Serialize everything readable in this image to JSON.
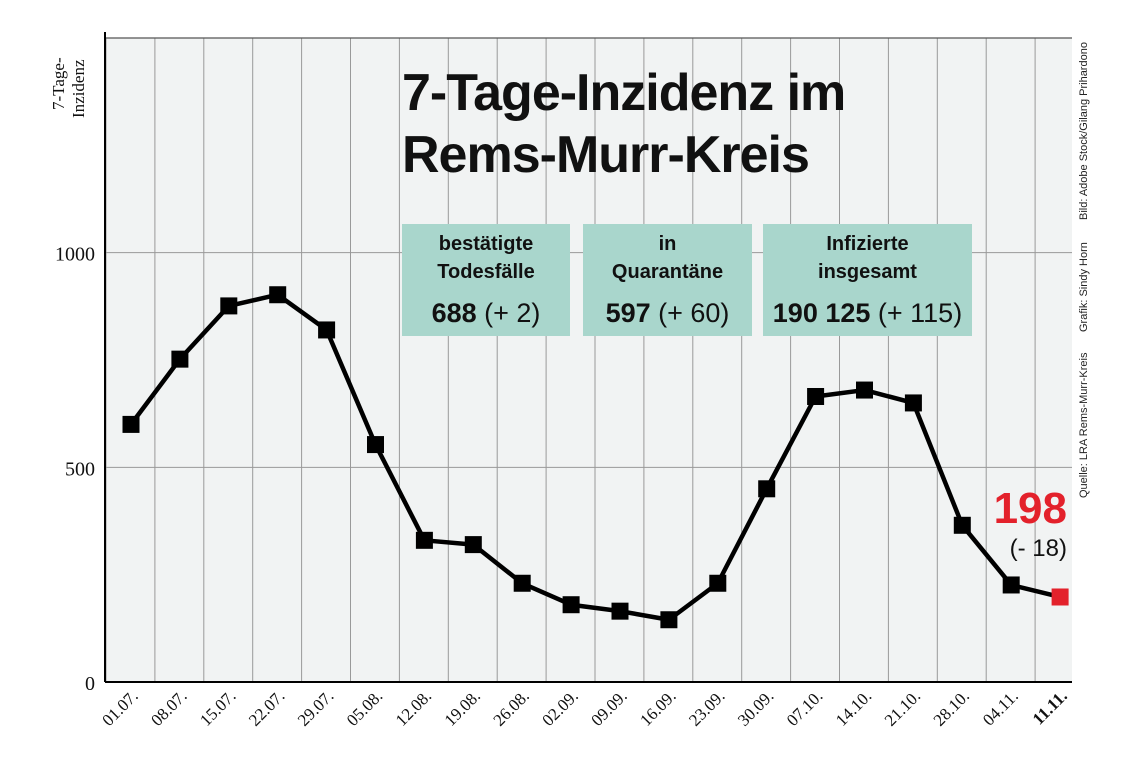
{
  "title_line1": "7-Tage-Inzidenz im",
  "title_line2": "Rems-Murr-Kreis",
  "ylabel_line1": "7-Tage-",
  "ylabel_line2": "Inzidenz",
  "credits": {
    "source": "Quelle: LRA Rems-Murr-Kreis",
    "graphic": "Grafik: Sindy Horn",
    "image": "Bild: Adobe Stock/Gilang Prihardono"
  },
  "stats": [
    {
      "line1": "bestätigte",
      "line2": "Todesfälle",
      "value": "688",
      "change": " (+ 2)"
    },
    {
      "line1": "in",
      "line2": "Quarantäne",
      "value": "597",
      "change": " (+ 60)"
    },
    {
      "line1": "Infizierte",
      "line2": "insgesamt",
      "value": "190 125",
      "change": " (+ 115)"
    }
  ],
  "current": {
    "value": "198",
    "change": "(- 18)"
  },
  "colors": {
    "line": "#000000",
    "marker": "#000000",
    "highlight": "#e3212b",
    "box": "#a9d6cc",
    "grid": "#999999"
  },
  "chart_data": {
    "type": "line",
    "x": [
      "01.07.",
      "08.07.",
      "15.07.",
      "22.07.",
      "29.07.",
      "05.08.",
      "12.08.",
      "19.08.",
      "26.08.",
      "02.09.",
      "09.09.",
      "16.09.",
      "23.09.",
      "30.09.",
      "07.10.",
      "14.10.",
      "21.10.",
      "28.10.",
      "04.11.",
      "11.11."
    ],
    "series": [
      {
        "values": [
          600,
          752,
          876,
          902,
          820,
          553,
          330,
          320,
          230,
          180,
          165,
          145,
          230,
          450,
          665,
          680,
          650,
          365,
          226,
          198
        ]
      }
    ],
    "ylim": [
      0,
      1500
    ],
    "yticks": [
      0,
      500,
      1000
    ],
    "grid": true,
    "highlight_last": true
  }
}
